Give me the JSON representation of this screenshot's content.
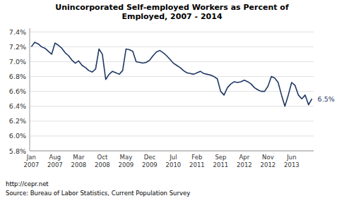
{
  "chart_data": {
    "type": "line",
    "title": "Unincorporated Self-employed Workers as Percent of\nEmployed, 2007 - 2014",
    "color": "#1F3864",
    "annotation": "6.5%",
    "source": [
      "http://cepr.net",
      "Source: Bureau of Labor Statistics, Current Population Survey"
    ],
    "categories": [
      "Jan\n2007",
      null,
      null,
      null,
      null,
      null,
      null,
      "Aug\n2007",
      null,
      null,
      null,
      null,
      null,
      null,
      "Mar\n2008",
      null,
      null,
      null,
      null,
      null,
      null,
      "Oct\n2008",
      null,
      null,
      null,
      null,
      null,
      null,
      "May\n2009",
      null,
      null,
      null,
      null,
      null,
      null,
      "Dec\n2009",
      null,
      null,
      null,
      null,
      null,
      null,
      "Jul\n2010",
      null,
      null,
      null,
      null,
      null,
      null,
      "Feb\n2011",
      null,
      null,
      null,
      null,
      null,
      null,
      "Sep\n2011",
      null,
      null,
      null,
      null,
      null,
      null,
      "Apr\n2012",
      null,
      null,
      null,
      null,
      null,
      null,
      "Nov\n2012",
      null,
      null,
      null,
      null,
      null,
      null,
      "Jun\n2013",
      null,
      null,
      null,
      null,
      null,
      null
    ],
    "values": [
      7.2,
      7.26,
      7.24,
      7.2,
      7.18,
      7.14,
      7.1,
      7.25,
      7.22,
      7.18,
      7.12,
      7.08,
      7.02,
      6.98,
      7.01,
      6.95,
      6.92,
      6.88,
      6.86,
      6.9,
      7.17,
      7.1,
      6.76,
      6.83,
      6.87,
      6.85,
      6.83,
      6.88,
      7.17,
      7.16,
      7.14,
      7.0,
      6.99,
      6.98,
      6.99,
      7.02,
      7.08,
      7.13,
      7.15,
      7.12,
      7.08,
      7.03,
      6.98,
      6.95,
      6.92,
      6.88,
      6.85,
      6.84,
      6.83,
      6.85,
      6.87,
      6.84,
      6.83,
      6.82,
      6.8,
      6.77,
      6.6,
      6.55,
      6.65,
      6.7,
      6.73,
      6.72,
      6.73,
      6.75,
      6.73,
      6.7,
      6.65,
      6.62,
      6.6,
      6.6,
      6.67,
      6.8,
      6.78,
      6.72,
      6.55,
      6.4,
      6.55,
      6.72,
      6.68,
      6.55,
      6.5,
      6.55,
      6.42,
      6.5
    ],
    "ylim": [
      5.8,
      7.45
    ],
    "yticks": [
      {
        "value": 5.8,
        "label": "5.8%"
      },
      {
        "value": 6.0,
        "label": "6.0%"
      },
      {
        "value": 6.2,
        "label": "6.2%"
      },
      {
        "value": 6.4,
        "label": "6.4%"
      },
      {
        "value": 6.6,
        "label": "6.6%"
      },
      {
        "value": 6.8,
        "label": "6.8%"
      },
      {
        "value": 7.0,
        "label": "7.0%"
      },
      {
        "value": 7.2,
        "label": "7.2%"
      },
      {
        "value": 7.4,
        "label": "7.4%"
      }
    ],
    "grid": true
  }
}
